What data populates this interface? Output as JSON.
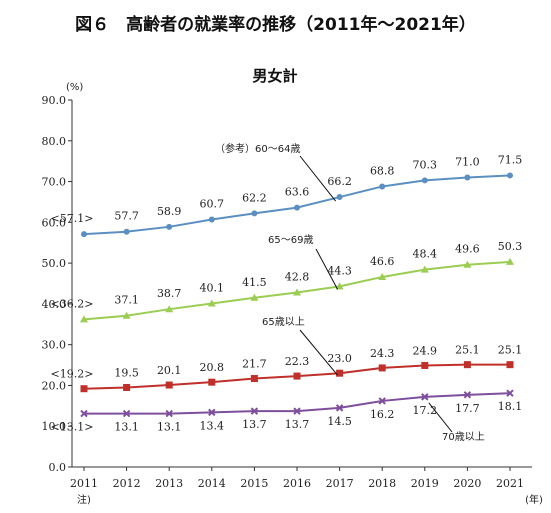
{
  "figure": {
    "title": "図６　高齢者の就業率の推移（2011年～2021年）"
  },
  "chart_data": {
    "type": "line",
    "title": "男女計",
    "y_unit": "(%)",
    "x_unit": "(年)",
    "x_note": "注)",
    "x": [
      "2011",
      "2012",
      "2013",
      "2014",
      "2015",
      "2016",
      "2017",
      "2018",
      "2019",
      "2020",
      "2021"
    ],
    "ylim": [
      0,
      90
    ],
    "yticks": [
      "0.0",
      "10.0",
      "20.0",
      "30.0",
      "40.0",
      "50.0",
      "60.0",
      "70.0",
      "80.0",
      "90.0"
    ],
    "grid": false,
    "series": [
      {
        "name": "（参考）60～64歳",
        "color": "#5b8fc2",
        "marker": "circle",
        "values": [
          57.1,
          57.7,
          58.9,
          60.7,
          62.2,
          63.6,
          66.2,
          68.8,
          70.3,
          71.0,
          71.5
        ],
        "labels": [
          "<57.1>",
          "57.7",
          "58.9",
          "60.7",
          "62.2",
          "63.6",
          "66.2",
          "68.8",
          "70.3",
          "71.0",
          "71.5"
        ]
      },
      {
        "name": "65～69歳",
        "color": "#9acd52",
        "marker": "triangle",
        "values": [
          36.2,
          37.1,
          38.7,
          40.1,
          41.5,
          42.8,
          44.3,
          46.6,
          48.4,
          49.6,
          50.3
        ],
        "labels": [
          "<36.2>",
          "37.1",
          "38.7",
          "40.1",
          "41.5",
          "42.8",
          "44.3",
          "46.6",
          "48.4",
          "49.6",
          "50.3"
        ]
      },
      {
        "name": "65歳以上",
        "color": "#c0302a",
        "marker": "square",
        "values": [
          19.2,
          19.5,
          20.1,
          20.8,
          21.7,
          22.3,
          23.0,
          24.3,
          24.9,
          25.1,
          25.1
        ],
        "labels": [
          "<19.2>",
          "19.5",
          "20.1",
          "20.8",
          "21.7",
          "22.3",
          "23.0",
          "24.3",
          "24.9",
          "25.1",
          "25.1"
        ]
      },
      {
        "name": "70歳以上",
        "color": "#7d4f9c",
        "marker": "x",
        "values": [
          13.1,
          13.1,
          13.1,
          13.4,
          13.7,
          13.7,
          14.5,
          16.2,
          17.2,
          17.7,
          18.1
        ],
        "labels": [
          "<13.1>",
          "13.1",
          "13.1",
          "13.4",
          "13.7",
          "13.7",
          "14.5",
          "16.2",
          "17.2",
          "17.7",
          "18.1"
        ]
      }
    ]
  }
}
